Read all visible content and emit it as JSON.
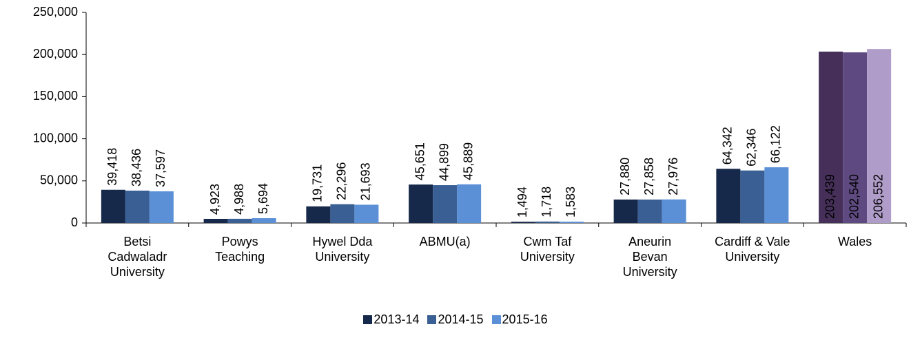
{
  "chart_data": {
    "type": "bar",
    "categories": [
      "Betsi Cadwaladr University",
      "Powys Teaching",
      "Hywel Dda University",
      "ABMU(a)",
      "Cwm Taf University",
      "Aneurin Bevan University",
      "Cardiff & Vale University",
      "Wales"
    ],
    "series": [
      {
        "name": "2013-14",
        "color": "#17294a",
        "colors": [
          "#17294a",
          "#17294a",
          "#17294a",
          "#17294a",
          "#17294a",
          "#17294a",
          "#17294a",
          "#46305a"
        ],
        "values": [
          39418,
          4923,
          19731,
          45651,
          1494,
          27880,
          64342,
          203439
        ],
        "value_labels": [
          "39,418",
          "4,923",
          "19,731",
          "45,651",
          "1,494",
          "27,880",
          "64,342",
          "203,439"
        ]
      },
      {
        "name": "2014-15",
        "color": "#3a5f94",
        "colors": [
          "#3a5f94",
          "#3a5f94",
          "#3a5f94",
          "#3a5f94",
          "#3a5f94",
          "#3a5f94",
          "#3a5f94",
          "#5e4a80"
        ],
        "values": [
          38436,
          4988,
          22296,
          44899,
          1718,
          27858,
          62346,
          202540
        ],
        "value_labels": [
          "38,436",
          "4,988",
          "22,296",
          "44,899",
          "1,718",
          "27,858",
          "62,346",
          "202,540"
        ]
      },
      {
        "name": "2015-16",
        "color": "#5b8fd6",
        "colors": [
          "#5b8fd6",
          "#5b8fd6",
          "#5b8fd6",
          "#5b8fd6",
          "#5b8fd6",
          "#5b8fd6",
          "#5b8fd6",
          "#b09cc8"
        ],
        "values": [
          37597,
          5694,
          21693,
          45889,
          1583,
          27976,
          66122,
          206552
        ],
        "value_labels": [
          "37,597",
          "5,694",
          "21,693",
          "45,889",
          "1,583",
          "27,976",
          "66,122",
          "206,552"
        ]
      }
    ],
    "labels_inside": [
      false,
      false,
      false,
      false,
      false,
      false,
      false,
      true
    ],
    "ylim": [
      0,
      250000
    ],
    "yticks": [
      0,
      {
        "value": 50000,
        "label": "50,000"
      },
      {
        "value": 100000,
        "label": "100,000"
      },
      {
        "value": 150000,
        "label": "150,000"
      },
      {
        "value": 200000,
        "label": "200,000"
      },
      {
        "value": 250000,
        "label": "250,000"
      }
    ],
    "grid": false,
    "legend": "bottom"
  }
}
